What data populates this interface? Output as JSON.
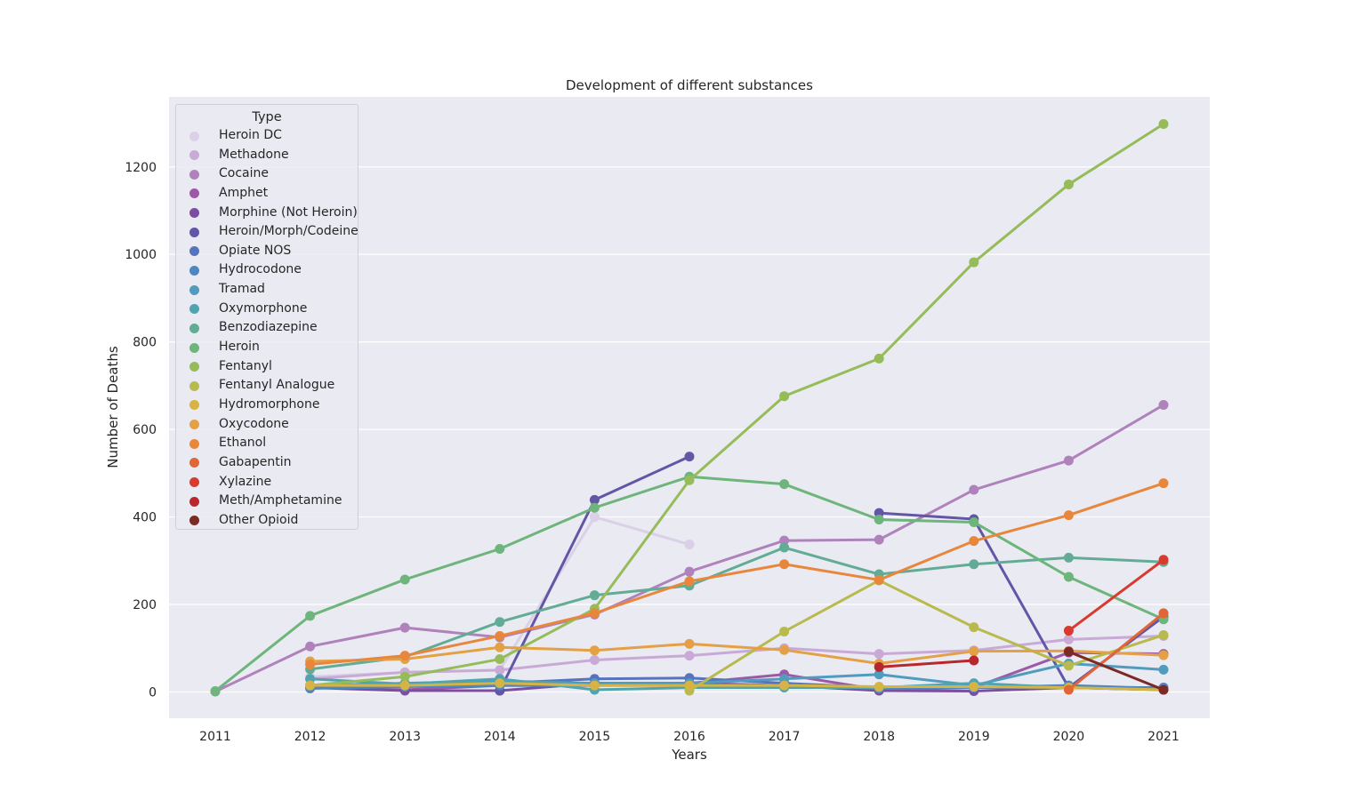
{
  "chart_data": {
    "type": "line",
    "title": "Development of different substances",
    "xlabel": "Years",
    "ylabel": "Number of Deaths",
    "x": [
      "2011",
      "2012",
      "2013",
      "2014",
      "2015",
      "2016",
      "2017",
      "2018",
      "2019",
      "2020",
      "2021"
    ],
    "ylim": [
      -60,
      1360
    ],
    "yticks": [
      0,
      200,
      400,
      600,
      800,
      1000,
      1200
    ],
    "grid": true,
    "legend_title": "Type",
    "legend_position": "upper-left",
    "series": [
      {
        "name": "Heroin DC",
        "color": "#dad0e8",
        "values": [
          null,
          35,
          45,
          50,
          400,
          337,
          null,
          null,
          null,
          null,
          null
        ]
      },
      {
        "name": "Methadone",
        "color": "#c9a9d6",
        "values": [
          null,
          30,
          45,
          50,
          73,
          83,
          100,
          87,
          95,
          120,
          128
        ]
      },
      {
        "name": "Cocaine",
        "color": "#af82bc",
        "values": [
          1,
          104,
          147,
          125,
          177,
          275,
          346,
          348,
          462,
          529,
          656
        ]
      },
      {
        "name": "Amphet",
        "color": "#9c5aa6",
        "values": [
          null,
          10,
          5,
          15,
          15,
          20,
          40,
          5,
          10,
          90,
          87
        ]
      },
      {
        "name": "Morphine (Not Heroin)",
        "color": "#7c4e9f",
        "values": [
          null,
          10,
          3,
          3,
          20,
          20,
          15,
          3,
          2,
          10,
          5
        ]
      },
      {
        "name": "Heroin/Morph/Codeine",
        "color": "#6356a6",
        "values": [
          null,
          null,
          null,
          3,
          439,
          538,
          null,
          409,
          395,
          10,
          172
        ]
      },
      {
        "name": "Opiate NOS",
        "color": "#5673bd",
        "values": [
          null,
          10,
          15,
          20,
          30,
          32,
          20,
          10,
          10,
          10,
          10
        ]
      },
      {
        "name": "Hydrocodone",
        "color": "#4b88c3",
        "values": [
          null,
          8,
          12,
          15,
          15,
          15,
          15,
          8,
          10,
          15,
          8
        ]
      },
      {
        "name": "Tramad",
        "color": "#4f9cbf",
        "values": [
          null,
          15,
          20,
          25,
          20,
          20,
          30,
          40,
          15,
          65,
          51
        ]
      },
      {
        "name": "Oxymorphone",
        "color": "#50a4b0",
        "values": [
          null,
          30,
          18,
          30,
          5,
          10,
          10,
          10,
          20,
          10,
          5
        ]
      },
      {
        "name": "Benzodiazepine",
        "color": "#62ab95",
        "values": [
          null,
          52,
          80,
          160,
          221,
          243,
          330,
          269,
          292,
          307,
          297
        ]
      },
      {
        "name": "Heroin",
        "color": "#6db57a",
        "values": [
          2,
          174,
          257,
          327,
          421,
          492,
          475,
          394,
          388,
          263,
          166
        ]
      },
      {
        "name": "Fentanyl",
        "color": "#95bc58",
        "values": [
          null,
          15,
          35,
          75,
          190,
          484,
          676,
          762,
          982,
          1160,
          1298
        ]
      },
      {
        "name": "Fentanyl Analogue",
        "color": "#b9ba4d",
        "values": [
          null,
          null,
          null,
          null,
          null,
          3,
          138,
          255,
          148,
          60,
          130
        ]
      },
      {
        "name": "Hydromorphone",
        "color": "#d6b343",
        "values": [
          null,
          15,
          15,
          20,
          15,
          15,
          15,
          12,
          12,
          10,
          5
        ]
      },
      {
        "name": "Oxycodone",
        "color": "#e3a045",
        "values": [
          null,
          70,
          75,
          102,
          95,
          110,
          96,
          65,
          93,
          94,
          84
        ]
      },
      {
        "name": "Ethanol",
        "color": "#e8873c",
        "values": [
          null,
          63,
          83,
          128,
          180,
          253,
          292,
          256,
          345,
          404,
          477
        ]
      },
      {
        "name": "Gabapentin",
        "color": "#e26535",
        "values": [
          null,
          null,
          null,
          null,
          null,
          null,
          null,
          null,
          null,
          5,
          180
        ]
      },
      {
        "name": "Xylazine",
        "color": "#d93a2e",
        "values": [
          null,
          null,
          null,
          null,
          null,
          null,
          null,
          null,
          null,
          140,
          302
        ]
      },
      {
        "name": "Meth/Amphetamine",
        "color": "#b9262c",
        "values": [
          null,
          null,
          null,
          null,
          null,
          null,
          null,
          57,
          72,
          null,
          null
        ]
      },
      {
        "name": "Other Opioid",
        "color": "#7c2a26",
        "values": [
          null,
          null,
          null,
          null,
          null,
          null,
          null,
          null,
          null,
          92,
          5
        ]
      }
    ]
  }
}
